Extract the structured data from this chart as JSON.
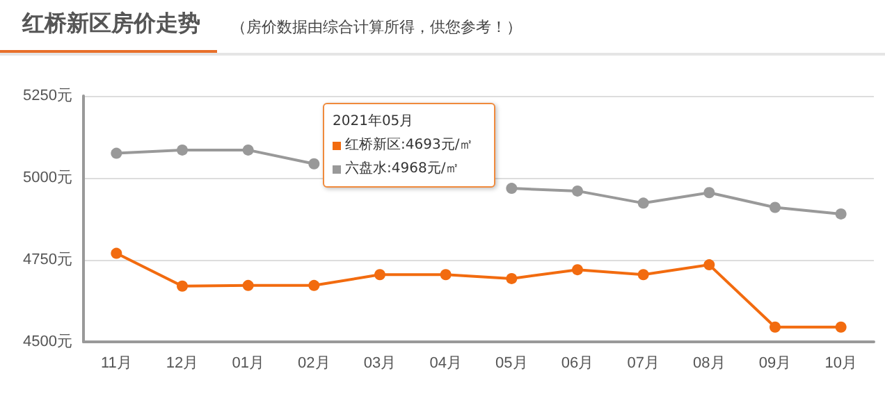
{
  "chart_data": {
    "type": "line",
    "title": "红桥新区房价走势",
    "subtitle": "（房价数据由综合计算所得，供您参考！）",
    "categories": [
      "11月",
      "12月",
      "01月",
      "02月",
      "03月",
      "04月",
      "05月",
      "06月",
      "07月",
      "08月",
      "09月",
      "10月"
    ],
    "series": [
      {
        "color": "#f26b0f",
        "values": [
          4770,
          4670,
          4672,
          4672,
          4705,
          4705,
          4693,
          4720,
          4705,
          4735,
          4545,
          4545
        ]
      },
      {
        "color": "#999999",
        "values": [
          5075,
          5085,
          5085,
          5043,
          null,
          null,
          4968,
          4960,
          4923,
          4955,
          4910,
          4890
        ]
      }
    ],
    "annotations": [
      "2021年05月",
      "红桥新区:4693元/㎡",
      "六盘水:4968元/㎡"
    ],
    "ylim": [
      4500,
      5250
    ],
    "yticks": [
      {
        "value": 4500,
        "label": "4500元"
      },
      {
        "value": 4750,
        "label": "4750元"
      },
      {
        "value": 5000,
        "label": "5000元"
      },
      {
        "value": 5250,
        "label": "5250元"
      }
    ],
    "grid": "y",
    "marker": "circle",
    "line_style": "solid"
  }
}
